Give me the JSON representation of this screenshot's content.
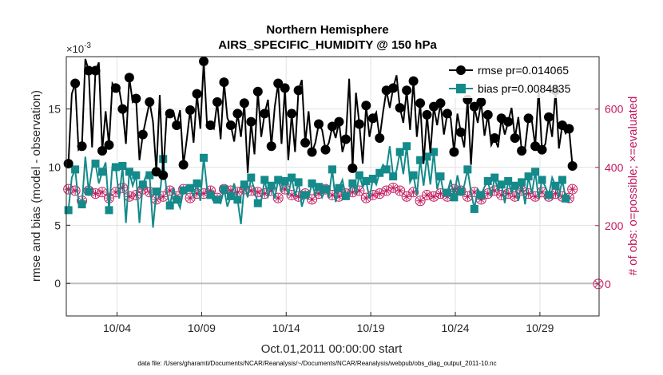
{
  "chart_data": {
    "type": "line",
    "title": "Northern Hemisphere",
    "subtitle": "AIRS_SPECIFIC_HUMIDITY @ 150 hPa",
    "xlabel": "Oct.01,2011 00:00:00 start",
    "ylabel": "rmse and bias (model - observation)",
    "y2label": "# of obs: o=possible; ×=evaluated",
    "y_exponent": "×10",
    "y_exponent_power": "-3",
    "x_start_day": 1,
    "x_range_days": [
      1.0,
      32.5
    ],
    "x_ticks": [
      {
        "day": 4,
        "label": "10/04"
      },
      {
        "day": 9,
        "label": "10/09"
      },
      {
        "day": 14,
        "label": "10/14"
      },
      {
        "day": 19,
        "label": "10/19"
      },
      {
        "day": 24,
        "label": "10/24"
      },
      {
        "day": 29,
        "label": "10/29"
      }
    ],
    "ylim": [
      -2.8,
      19.5
    ],
    "y_ticks": [
      0,
      5,
      10,
      15
    ],
    "y2lim": [
      -110,
      780
    ],
    "y2_ticks": [
      0,
      200,
      400,
      600
    ],
    "grid": true,
    "zero_line": 0,
    "legend_position": "top-right",
    "series": [
      {
        "name": "rmse pr=0.014065",
        "color": "#000000",
        "marker": "filled-circle",
        "axis": "left",
        "values": [
          10.3,
          16.3,
          17.2,
          11.5,
          11.8,
          19.3,
          18.3,
          11.7,
          18.3,
          19.0,
          11.4,
          14.8,
          11.9,
          17.2,
          16.8,
          16.7,
          15.0,
          12.0,
          17.7,
          15.6,
          15.9,
          10.6,
          12.8,
          14.2,
          15.6,
          13.9,
          9.6,
          16.2,
          9.3,
          14.3,
          14.6,
          14.8,
          13.6,
          14.9,
          10.2,
          12.4,
          14.9,
          12.1,
          16.3,
          13.3,
          19.1,
          13.5,
          13.6,
          13.3,
          15.6,
          12.4,
          17.3,
          14.2,
          13.6,
          12.2,
          14.6,
          12.6,
          15.5,
          9.5,
          13.9,
          11.1,
          16.5,
          12.6,
          14.6,
          15.8,
          11.8,
          15.2,
          17.2,
          12.0,
          16.8,
          10.6,
          14.6,
          11.3,
          16.6,
          17.5,
          12.1,
          14.8,
          11.3,
          12.1,
          13.7,
          13.2,
          11.5,
          12.1,
          13.5,
          12.5,
          13.9,
          11.3,
          12.4,
          17.6,
          9.9,
          16.4,
          13.7,
          10.3,
          15.3,
          12.6,
          14.2,
          14.7,
          12.5,
          14.7,
          16.6,
          15.1,
          16.8,
          17.9,
          15.1,
          13.8,
          16.6,
          13.2,
          17.4,
          12.6,
          15.5,
          10.3,
          14.5,
          11.2,
          15.2,
          13.6,
          15.5,
          12.8,
          14.6,
          14.2,
          11.3,
          14.6,
          13.0,
          11.7,
          15.8,
          10.2,
          15.2,
          13.8,
          15.6,
          12.7,
          14.5,
          11.9,
          12.5,
          11.7,
          14.2,
          12.8,
          13.9,
          15.1,
          12.5,
          14.3,
          11.4,
          11.7,
          14.2,
          14.0,
          11.8,
          16.7,
          11.5,
          12.0,
          14.3,
          12.6,
          16.6,
          11.6,
          13.6,
          12.9,
          13.3,
          10.1
        ]
      },
      {
        "name": "bias pr=0.0084835",
        "color": "#148a8a",
        "marker": "filled-square",
        "axis": "left",
        "values": [
          6.3,
          9.1,
          9.8,
          7.0,
          6.8,
          10.9,
          7.9,
          9.9,
          10.3,
          8.6,
          9.6,
          10.4,
          6.3,
          10.1,
          10.0,
          7.3,
          10.1,
          5.2,
          9.6,
          8.4,
          9.3,
          5.2,
          8.5,
          9.3,
          9.3,
          4.8,
          7.9,
          7.4,
          10.7,
          8.0,
          6.7,
          8.2,
          7.2,
          6.5,
          8.0,
          8.4,
          8.2,
          7.5,
          8.6,
          7.1,
          10.8,
          8.1,
          7.6,
          7.0,
          7.2,
          6.9,
          8.1,
          6.6,
          7.5,
          8.6,
          7.2,
          5.1,
          8.5,
          7.4,
          9.1,
          8.0,
          6.9,
          7.1,
          8.9,
          7.5,
          8.4,
          7.3,
          8.9,
          8.0,
          8.8,
          7.6,
          9.1,
          7.5,
          8.7,
          6.6,
          7.6,
          7.4,
          8.6,
          7.6,
          8.3,
          7.4,
          8.1,
          7.5,
          9.8,
          7.0,
          8.2,
          8.9,
          7.5,
          7.8,
          8.6,
          7.7,
          9.3,
          8.3,
          8.8,
          7.3,
          9.0,
          8.5,
          9.5,
          10.2,
          9.8,
          11.8,
          9.2,
          9.7,
          11.3,
          9.4,
          11.8,
          8.7,
          9.3,
          7.6,
          10.6,
          8.4,
          10.9,
          8.5,
          11.3,
          8.1,
          9.2,
          7.6,
          7.8,
          8.9,
          7.4,
          9.3,
          7.9,
          8.4,
          9.8,
          7.9,
          6.4,
          8.1,
          7.6,
          8.3,
          8.8,
          7.5,
          9.1,
          8.0,
          8.5,
          6.9,
          8.8,
          7.8,
          8.4,
          7.1,
          8.7,
          6.8,
          9.2,
          7.7,
          9.6,
          7.3,
          8.9,
          8.3,
          7.6,
          9.1,
          8.4,
          7.5,
          8.9,
          7.3
        ]
      },
      {
        "name": "# of obs possible",
        "color": "#c2185b",
        "marker": "open-circle",
        "axis": "right",
        "values": [
          325,
          310,
          320,
          300,
          285,
          325,
          320,
          280,
          310,
          300,
          315,
          310,
          295,
          285,
          315,
          310,
          330,
          290,
          300,
          320,
          305,
          310,
          325,
          300,
          315,
          320,
          290,
          310,
          300,
          325,
          320,
          315,
          300,
          310,
          325,
          320,
          295,
          315,
          310,
          330,
          310,
          300,
          320,
          315,
          295,
          310,
          325,
          300,
          320,
          290,
          315,
          310,
          325,
          305,
          320,
          300,
          315,
          330,
          310,
          300,
          320,
          315,
          295,
          310,
          325,
          320,
          305,
          315,
          300,
          320,
          310,
          325,
          290,
          315,
          310,
          300,
          325,
          320,
          305,
          315,
          300,
          320,
          310,
          325,
          315,
          300,
          320,
          310,
          295,
          320,
          305,
          325,
          310,
          300,
          320,
          315,
          330,
          305,
          320,
          310,
          300,
          325,
          315,
          310,
          285,
          320,
          305,
          315,
          300,
          325,
          310,
          320,
          300,
          315,
          325,
          305,
          320,
          310,
          300,
          320,
          315,
          325,
          290,
          320,
          310,
          300,
          320,
          315,
          305,
          320,
          310,
          325,
          300,
          315,
          320,
          305,
          310,
          325,
          300,
          320,
          315,
          310,
          300,
          320,
          310,
          305,
          300,
          320,
          295,
          325
        ]
      },
      {
        "name": "# of obs evaluated",
        "color": "#c2185b",
        "marker": "cross",
        "axis": "right",
        "values": [
          325,
          310,
          320,
          300,
          285,
          325,
          320,
          280,
          310,
          300,
          315,
          310,
          295,
          285,
          315,
          310,
          330,
          290,
          300,
          320,
          305,
          310,
          325,
          300,
          315,
          320,
          290,
          310,
          300,
          325,
          320,
          315,
          300,
          310,
          325,
          320,
          295,
          315,
          310,
          330,
          310,
          300,
          320,
          315,
          295,
          310,
          325,
          300,
          320,
          290,
          315,
          310,
          325,
          305,
          320,
          300,
          315,
          330,
          310,
          300,
          320,
          315,
          295,
          310,
          325,
          320,
          305,
          315,
          300,
          320,
          310,
          325,
          290,
          315,
          310,
          300,
          325,
          320,
          305,
          315,
          300,
          320,
          310,
          325,
          315,
          300,
          320,
          310,
          295,
          320,
          305,
          325,
          310,
          300,
          320,
          315,
          330,
          305,
          320,
          310,
          300,
          325,
          315,
          310,
          285,
          320,
          305,
          315,
          300,
          325,
          310,
          320,
          300,
          315,
          325,
          305,
          320,
          310,
          300,
          320,
          315,
          325,
          290,
          320,
          310,
          300,
          320,
          315,
          305,
          320,
          310,
          325,
          300,
          315,
          320,
          305,
          310,
          325,
          300,
          320,
          315,
          310,
          300,
          320,
          310,
          305,
          300,
          320,
          295,
          325
        ]
      }
    ],
    "last_point_obs": 0,
    "footer": "data file: /Users/gharamti/Documents/NCAR/Reanalysis/~/Documents/NCAR/Reanalysis/webpub/obs_diag_output_2011-10.nc"
  }
}
